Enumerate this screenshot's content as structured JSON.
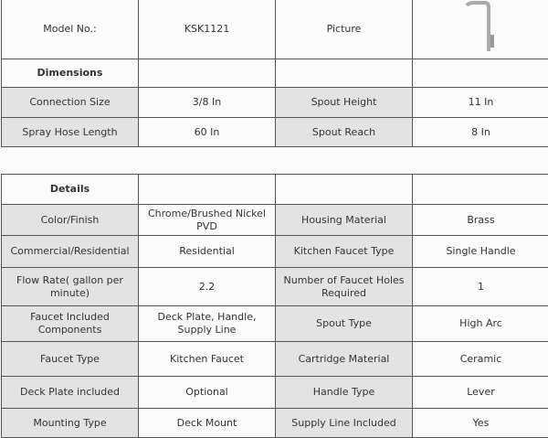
{
  "header": {
    "model_label": "Model No.:",
    "model_value": "KSK1121",
    "picture_label": "Picture",
    "picture_icon": "faucet-image"
  },
  "dimensions": {
    "title": "Dimensions",
    "rows": [
      {
        "l1": "Connection Size",
        "v1": "3/8 In",
        "l2": "Spout Height",
        "v2": "11 In"
      },
      {
        "l1": "Spray Hose Length",
        "v1": "60 In",
        "l2": "Spout Reach",
        "v2": "8 In"
      }
    ]
  },
  "details": {
    "title": "Details",
    "rows": [
      {
        "l1": "Color/Finish",
        "v1": "Chrome/Brushed Nickel PVD",
        "l2": "Housing Material",
        "v2": "Brass"
      },
      {
        "l1": "Commercial/Residential",
        "v1": "Residential",
        "l2": "Kitchen Faucet Type",
        "v2": "Single Handle"
      },
      {
        "l1": "Flow Rate( gallon per minute)",
        "v1": "2.2",
        "l2": "Number of Faucet Holes Required",
        "v2": "1"
      },
      {
        "l1": "Faucet Included Components",
        "v1": "Deck Plate, Handle, Supply Line",
        "l2": "Spout Type",
        "v2": "High Arc"
      },
      {
        "l1": "Faucet Type",
        "v1": "Kitchen Faucet",
        "l2": "Cartridge Material",
        "v2": "Ceramic"
      },
      {
        "l1": "Deck Plate included",
        "v1": "Optional",
        "l2": "Handle Type",
        "v2": "Lever"
      },
      {
        "l1": "Mounting Type",
        "v1": "Deck Mount",
        "l2": "Supply Line Included",
        "v2": "Yes"
      }
    ]
  }
}
